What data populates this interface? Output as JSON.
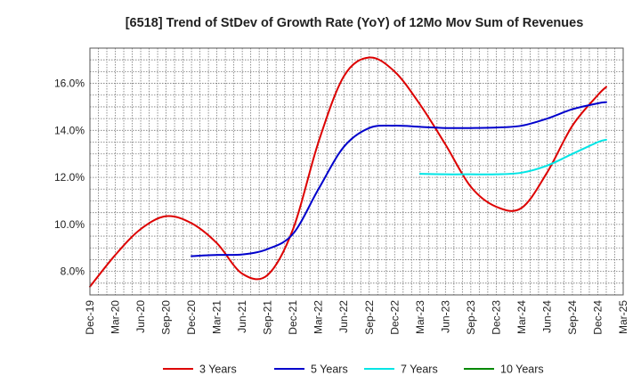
{
  "chart_data": {
    "type": "line",
    "title": "[6518]  Trend of StDev of Growth Rate (YoY) of 12Mo Mov Sum of Revenues",
    "xlabel": "",
    "ylabel": "",
    "ylim": [
      7.0,
      17.5
    ],
    "y_ticks": [
      8.0,
      10.0,
      12.0,
      14.0,
      16.0
    ],
    "y_tick_labels": [
      "8.0%",
      "10.0%",
      "12.0%",
      "14.0%",
      "16.0%"
    ],
    "x_tick_labels": [
      "Dec-19",
      "Mar-20",
      "Jun-20",
      "Sep-20",
      "Dec-20",
      "Mar-21",
      "Jun-21",
      "Sep-21",
      "Dec-21",
      "Mar-22",
      "Jun-22",
      "Sep-22",
      "Dec-22",
      "Mar-23",
      "Jun-23",
      "Sep-23",
      "Dec-23",
      "Mar-24",
      "Jun-24",
      "Sep-24",
      "Dec-24",
      "Mar-25"
    ],
    "x_month_range": [
      0,
      63
    ],
    "grid": true,
    "legend_position": "bottom",
    "series": [
      {
        "name": "3 Years",
        "color": "#dd0000",
        "x": [
          0,
          3,
          6,
          9,
          12,
          15,
          18,
          21,
          24,
          27,
          30,
          33,
          36,
          39,
          42,
          45,
          48,
          51,
          54,
          57,
          60,
          61
        ],
        "values": [
          7.35,
          8.7,
          9.8,
          10.35,
          10.05,
          9.2,
          7.9,
          7.85,
          9.8,
          13.5,
          16.3,
          17.1,
          16.5,
          15.1,
          13.4,
          11.6,
          10.75,
          10.7,
          12.2,
          14.2,
          15.5,
          15.85
        ]
      },
      {
        "name": "5 Years",
        "color": "#0000cc",
        "x": [
          12,
          15,
          18,
          21,
          24,
          27,
          30,
          33,
          36,
          39,
          42,
          45,
          48,
          51,
          54,
          57,
          60,
          61
        ],
        "values": [
          8.65,
          8.7,
          8.72,
          8.95,
          9.6,
          11.5,
          13.3,
          14.1,
          14.2,
          14.15,
          14.1,
          14.1,
          14.12,
          14.2,
          14.5,
          14.9,
          15.15,
          15.2
        ]
      },
      {
        "name": "7 Years",
        "color": "#00e5e5",
        "x": [
          39,
          42,
          45,
          48,
          51,
          54,
          57,
          60,
          61
        ],
        "values": [
          12.15,
          12.13,
          12.13,
          12.13,
          12.2,
          12.5,
          13.0,
          13.5,
          13.6
        ]
      },
      {
        "name": "10 Years",
        "color": "#008800",
        "x": [],
        "values": []
      }
    ]
  }
}
